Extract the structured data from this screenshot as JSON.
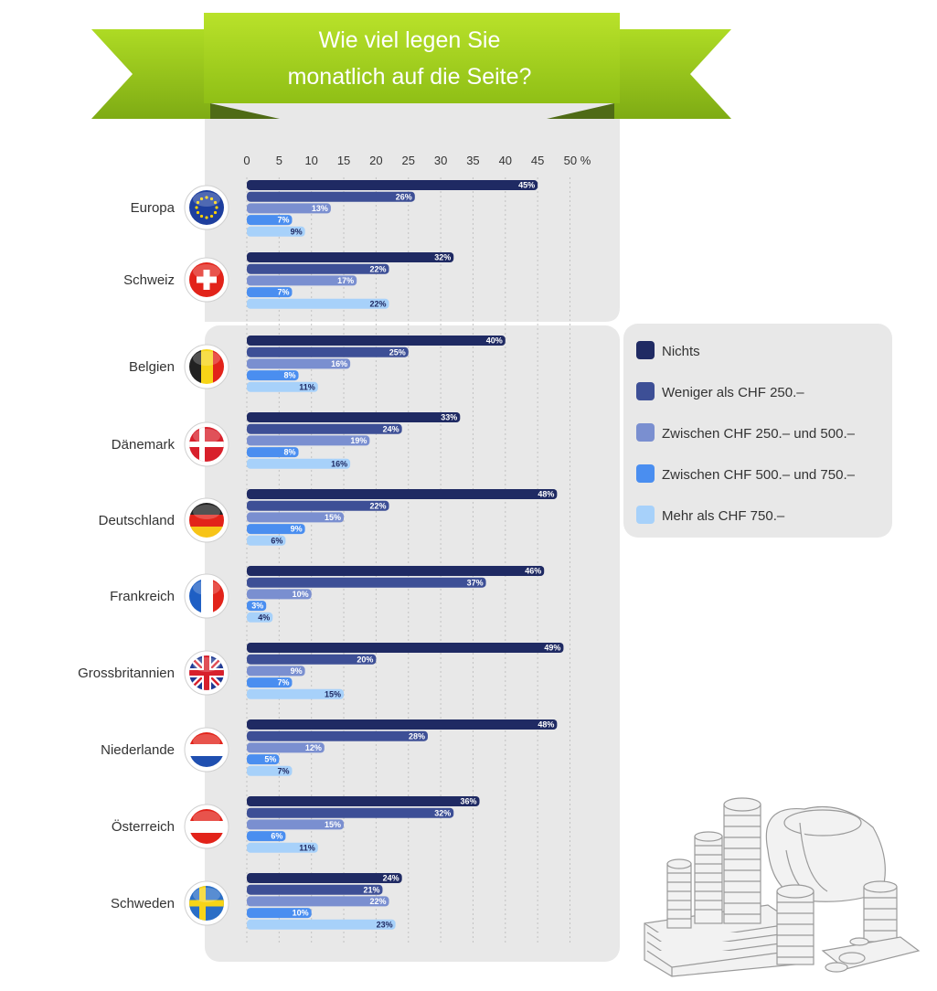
{
  "header": {
    "title_line1": "Wie viel legen Sie",
    "title_line2": "monatlich auf die Seite?"
  },
  "chart_data": {
    "type": "bar",
    "orientation": "horizontal",
    "title": "Wie viel legen Sie monatlich auf die Seite?",
    "xlim": [
      0,
      50
    ],
    "x_ticks": [
      "0",
      "5",
      "10",
      "15",
      "20",
      "25",
      "30",
      "35",
      "40",
      "45",
      "50 %"
    ],
    "grid": true,
    "legend_position": "right",
    "categories": [
      "Europa",
      "Schweiz",
      "Belgien",
      "Dänemark",
      "Deutschland",
      "Frankreich",
      "Grossbritannien",
      "Niederlande",
      "Österreich",
      "Schweden"
    ],
    "series": [
      {
        "name": "Nichts",
        "color": "#1f2a63",
        "values": [
          45,
          32,
          40,
          33,
          48,
          46,
          49,
          48,
          36,
          24
        ]
      },
      {
        "name": "Weniger als CHF 250.–",
        "color": "#3d4f96",
        "values": [
          26,
          22,
          25,
          24,
          22,
          37,
          20,
          28,
          32,
          21
        ]
      },
      {
        "name": "Zwischen CHF 250.– und 500.–",
        "color": "#7a8fd0",
        "values": [
          13,
          17,
          16,
          19,
          15,
          10,
          9,
          12,
          15,
          22
        ]
      },
      {
        "name": "Zwischen CHF 500.– und 750.–",
        "color": "#4a8ef0",
        "values": [
          7,
          7,
          8,
          8,
          9,
          3,
          7,
          5,
          6,
          10
        ]
      },
      {
        "name": "Mehr als CHF 750.–",
        "color": "#a7d1fa",
        "values": [
          9,
          22,
          11,
          16,
          6,
          4,
          15,
          7,
          11,
          23
        ]
      }
    ],
    "value_suffix": "%"
  },
  "flags": [
    "eu-flag-icon",
    "switzerland-flag-icon",
    "belgium-flag-icon",
    "denmark-flag-icon",
    "germany-flag-icon",
    "france-flag-icon",
    "uk-flag-icon",
    "netherlands-flag-icon",
    "austria-flag-icon",
    "sweden-flag-icon"
  ],
  "colors": {
    "banner_green": "#a6d41c",
    "banner_dark": "#5b7a1b",
    "panel_bg": "#e8e8e8"
  }
}
